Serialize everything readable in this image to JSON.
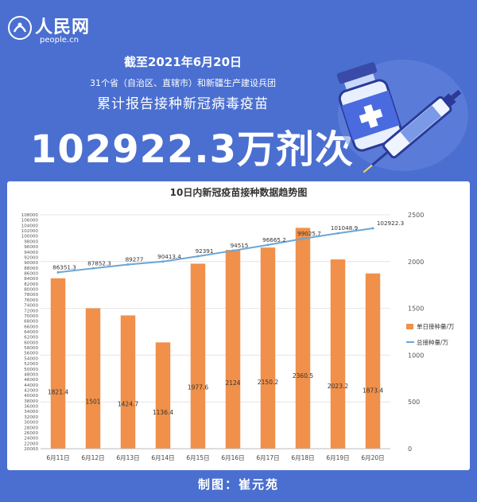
{
  "header": {
    "logo_text": "人民网",
    "logo_sub": "people.cn",
    "date_line": "截至2021年6月20日",
    "sub_line": "31个省（自治区、直辖市）和新疆生产建设兵团",
    "head_line": "累计报告接种新冠病毒疫苗",
    "big_number": "102922.3万剂次"
  },
  "footer": {
    "credit": "制图：崔元苑"
  },
  "colors": {
    "background": "#4a6fd0",
    "bar": "#f0904a",
    "line": "#6aa6d8",
    "card": "#ffffff"
  },
  "chart_data": {
    "type": "bar",
    "title": "10日内新冠疫苗接种数据趋势图",
    "categories": [
      "6月11日",
      "6月12日",
      "6月13日",
      "6月14日",
      "6月15日",
      "6月16日",
      "6月17日",
      "6月18日",
      "6月19日",
      "6月20日"
    ],
    "series": [
      {
        "name": "单日接种量/万",
        "type": "bar",
        "axis": "right",
        "values": [
          1821.4,
          1501,
          1424.7,
          1136.4,
          1977.6,
          2124,
          2150.2,
          2360.5,
          2023.2,
          1873.4
        ],
        "labels": [
          "1821.4",
          "1501",
          "1424.7",
          "1136.4",
          "1977.6",
          "2124",
          "2150.2",
          "2360.5",
          "2023.2",
          "1873.4"
        ]
      },
      {
        "name": "总接种量/万",
        "type": "line",
        "axis": "left",
        "values": [
          86351.3,
          87852.3,
          89277,
          90413.4,
          92391,
          94515,
          96665.2,
          99025.7,
          101048.9,
          102922.3
        ],
        "labels": [
          "86351.3",
          "87852.3",
          "89277",
          "90413.4",
          "92391",
          "94515",
          "96665.2",
          "99025.7",
          "101048.9",
          "102922.3"
        ]
      }
    ],
    "left_axis": {
      "ylim": [
        20000,
        108000
      ],
      "ticks": [
        "108000",
        "106000",
        "104000",
        "102000",
        "100000",
        "98000",
        "96000",
        "94000",
        "92000",
        "90000",
        "88000",
        "86000",
        "84000",
        "82000",
        "80000",
        "78000",
        "76000",
        "74000",
        "72000",
        "70000",
        "68000",
        "66000",
        "64000",
        "62000",
        "60000",
        "58000",
        "56000",
        "54000",
        "52000",
        "50000",
        "48000",
        "46000",
        "44000",
        "42000",
        "40000",
        "38000",
        "36000",
        "34000",
        "32000",
        "30000",
        "28000",
        "26000",
        "24000",
        "22000",
        "20000"
      ]
    },
    "right_axis": {
      "ylim": [
        0,
        2500
      ],
      "ticks": [
        "2500",
        "2000",
        "1500",
        "1000",
        "500",
        "0"
      ]
    },
    "grid": true,
    "legend_position": "right"
  }
}
